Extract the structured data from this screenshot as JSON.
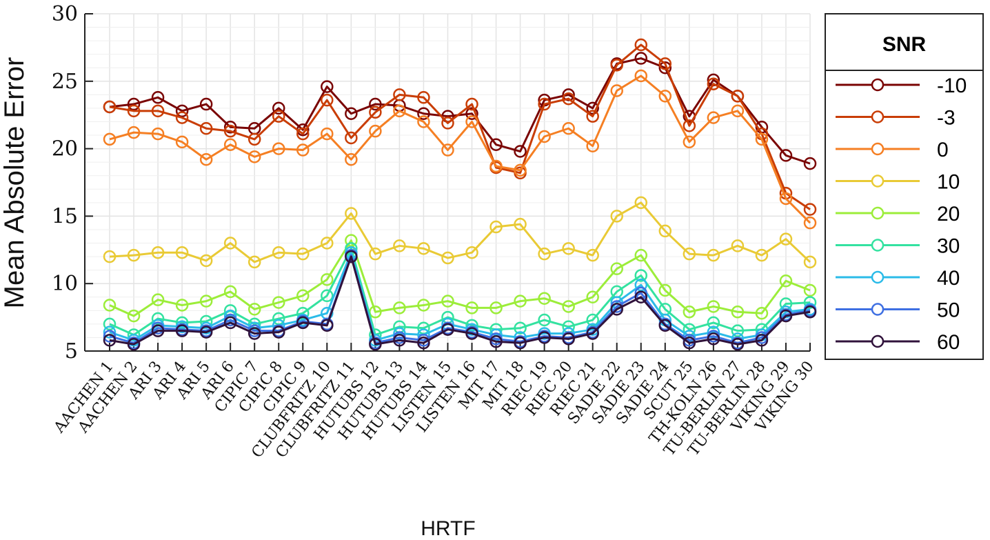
{
  "chart_data": {
    "type": "line",
    "title": "",
    "xlabel": "HRTF",
    "ylabel": "Mean Absolute Error",
    "ylim": [
      5,
      30
    ],
    "yticks": [
      5,
      10,
      15,
      20,
      25,
      30
    ],
    "grid": true,
    "legend_title": "SNR",
    "legend_position": "right-outside",
    "categories": [
      "AACHEN 1",
      "AACHEN 2",
      "ARI 3",
      "ARI 4",
      "ARI 5",
      "ARI 6",
      "CIPIC 7",
      "CIPIC 8",
      "CIPIC 9",
      "CLUBFRITZ 10",
      "CLUBFRITZ 11",
      "HUTUBS 12",
      "HUTUBS 13",
      "HUTUBS 14",
      "LISTEN 15",
      "LISTEN 16",
      "MIT 17",
      "MIT 18",
      "RIEC 19",
      "RIEC 20",
      "RIEC 21",
      "SADIE 22",
      "SADIE 23",
      "SADIE 24",
      "SCUT 25",
      "TH-KOLN 26",
      "TU-BERLIN 27",
      "TU-BERLIN 28",
      "VIKING 29",
      "VIKING 30"
    ],
    "series": [
      {
        "name": "-10",
        "color": "#7a0403",
        "values": [
          23.1,
          23.3,
          23.8,
          22.8,
          23.3,
          21.6,
          21.5,
          23.0,
          21.4,
          24.6,
          22.6,
          23.3,
          23.2,
          22.6,
          22.4,
          22.6,
          20.3,
          19.8,
          23.6,
          24.0,
          23.0,
          26.3,
          26.7,
          26.0,
          22.4,
          25.1,
          23.9,
          21.6,
          19.5,
          18.9
        ]
      },
      {
        "name": "-3",
        "color": "#c93d05",
        "values": [
          23.1,
          22.8,
          22.8,
          22.3,
          21.5,
          21.3,
          20.7,
          22.4,
          21.1,
          23.6,
          20.8,
          22.7,
          24.0,
          23.8,
          21.9,
          23.3,
          18.6,
          18.2,
          23.3,
          23.7,
          22.4,
          26.2,
          27.7,
          26.3,
          21.7,
          24.8,
          23.9,
          21.1,
          16.7,
          15.5
        ]
      },
      {
        "name": "0",
        "color": "#f57f23",
        "values": [
          20.7,
          21.2,
          21.1,
          20.5,
          19.2,
          20.3,
          19.4,
          20.0,
          19.9,
          21.1,
          19.2,
          21.3,
          22.8,
          22.0,
          19.9,
          22.0,
          18.7,
          18.4,
          20.9,
          21.5,
          20.2,
          24.3,
          25.4,
          23.9,
          20.5,
          22.3,
          22.8,
          20.7,
          16.3,
          14.5
        ]
      },
      {
        "name": "10",
        "color": "#e9ca35",
        "values": [
          12.0,
          12.1,
          12.3,
          12.3,
          11.7,
          13.0,
          11.6,
          12.3,
          12.2,
          13.0,
          15.2,
          12.2,
          12.8,
          12.6,
          11.9,
          12.3,
          14.2,
          14.4,
          12.2,
          12.6,
          12.1,
          15.0,
          16.0,
          13.9,
          12.2,
          12.1,
          12.8,
          12.1,
          13.3,
          11.6
        ]
      },
      {
        "name": "20",
        "color": "#9ced3a",
        "values": [
          8.4,
          7.6,
          8.8,
          8.4,
          8.7,
          9.4,
          8.1,
          8.6,
          9.1,
          10.3,
          13.2,
          7.9,
          8.2,
          8.4,
          8.7,
          8.2,
          8.2,
          8.7,
          8.9,
          8.3,
          9.0,
          11.1,
          12.1,
          9.5,
          7.9,
          8.3,
          7.9,
          7.8,
          10.2,
          9.5
        ]
      },
      {
        "name": "30",
        "color": "#33e2a0",
        "values": [
          7.0,
          6.2,
          7.4,
          7.1,
          7.2,
          8.0,
          7.0,
          7.4,
          7.8,
          9.1,
          12.6,
          6.2,
          6.8,
          6.7,
          7.5,
          6.9,
          6.6,
          6.7,
          7.3,
          6.8,
          7.3,
          9.4,
          10.6,
          8.1,
          6.6,
          7.1,
          6.5,
          6.6,
          8.5,
          8.6
        ]
      },
      {
        "name": "40",
        "color": "#2bbbe8",
        "values": [
          6.4,
          5.8,
          6.9,
          6.8,
          6.7,
          7.6,
          6.7,
          6.9,
          7.3,
          7.8,
          12.3,
          5.8,
          6.3,
          6.2,
          7.0,
          6.6,
          6.2,
          6.0,
          6.3,
          6.3,
          6.6,
          8.6,
          9.9,
          7.3,
          6.1,
          6.4,
          5.9,
          6.2,
          7.9,
          8.1
        ]
      },
      {
        "name": "50",
        "color": "#3e6fe2",
        "values": [
          6.1,
          5.6,
          6.7,
          6.6,
          6.5,
          7.3,
          6.5,
          6.5,
          7.2,
          7.0,
          12.1,
          5.6,
          6.0,
          5.8,
          6.7,
          6.4,
          5.9,
          5.7,
          6.1,
          6.0,
          6.4,
          8.3,
          9.3,
          7.0,
          5.8,
          6.1,
          5.6,
          6.0,
          7.7,
          8.0
        ]
      },
      {
        "name": "60",
        "color": "#30123b",
        "values": [
          5.8,
          5.5,
          6.5,
          6.5,
          6.4,
          7.1,
          6.3,
          6.4,
          7.1,
          6.9,
          12.0,
          5.5,
          5.8,
          5.6,
          6.6,
          6.3,
          5.7,
          5.6,
          6.0,
          5.9,
          6.3,
          8.1,
          9.0,
          6.9,
          5.6,
          5.9,
          5.5,
          5.8,
          7.6,
          7.9
        ]
      }
    ]
  }
}
